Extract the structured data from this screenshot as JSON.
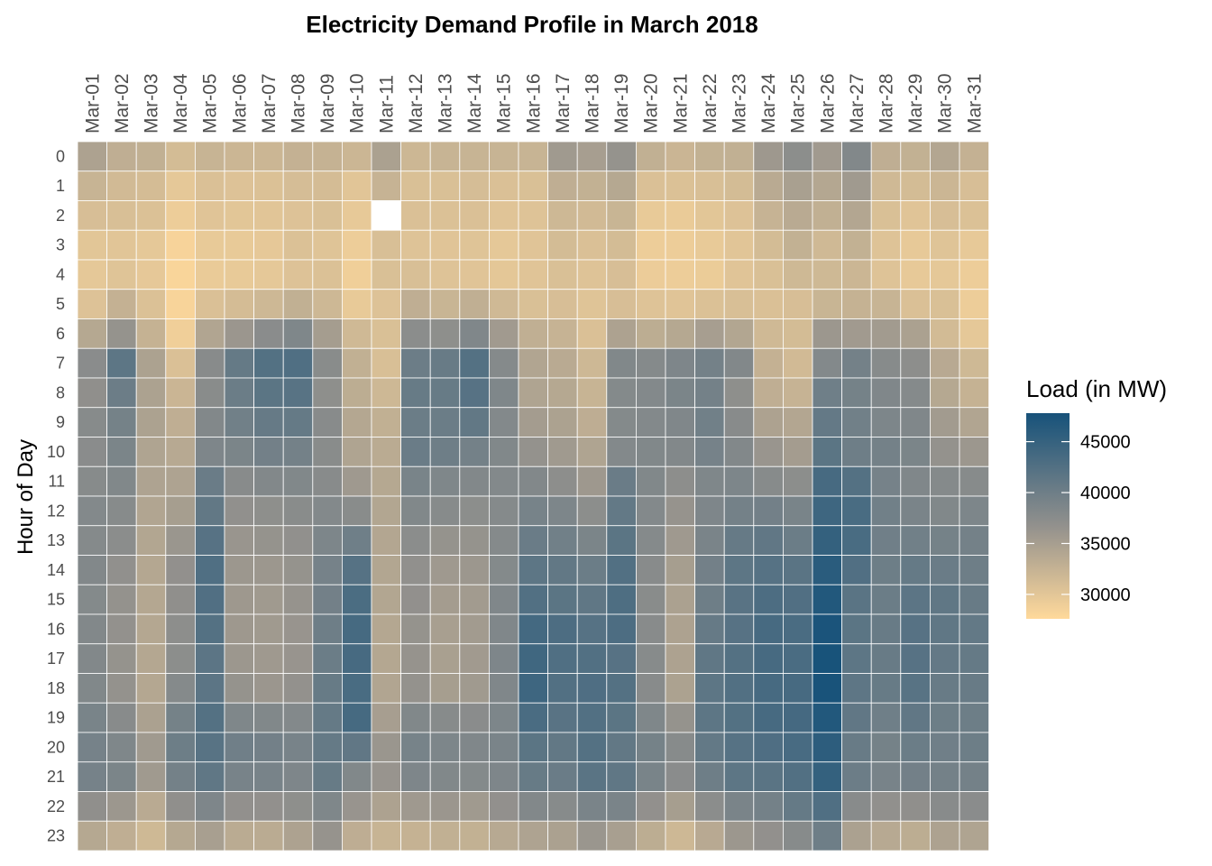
{
  "chart_data": {
    "type": "heatmap",
    "title": "Electricity Demand Profile in March 2018",
    "xlabel": "",
    "ylabel": "Hour of Day",
    "x_categories": [
      "Mar-01",
      "Mar-02",
      "Mar-03",
      "Mar-04",
      "Mar-05",
      "Mar-06",
      "Mar-07",
      "Mar-08",
      "Mar-09",
      "Mar-10",
      "Mar-11",
      "Mar-12",
      "Mar-13",
      "Mar-14",
      "Mar-15",
      "Mar-16",
      "Mar-17",
      "Mar-18",
      "Mar-19",
      "Mar-20",
      "Mar-21",
      "Mar-22",
      "Mar-23",
      "Mar-24",
      "Mar-25",
      "Mar-26",
      "Mar-27",
      "Mar-28",
      "Mar-29",
      "Mar-30",
      "Mar-31"
    ],
    "y_categories": [
      "0",
      "1",
      "2",
      "3",
      "4",
      "5",
      "6",
      "7",
      "8",
      "9",
      "10",
      "11",
      "12",
      "13",
      "14",
      "15",
      "16",
      "17",
      "18",
      "19",
      "20",
      "21",
      "22",
      "23"
    ],
    "legend": {
      "title": "Load (in MW)",
      "position": "right",
      "ticks": [
        30000,
        35000,
        40000,
        45000
      ],
      "tick_labels": [
        "30000",
        "35000",
        "40000",
        "45000"
      ],
      "range": [
        27600,
        47800
      ],
      "color_low": "#ffd99b",
      "color_mid": "#93918d",
      "color_high": "#17527a"
    },
    "missing": [
      {
        "day": "Mar-11",
        "hour": 2
      }
    ],
    "values_by_day": [
      [
        34500,
        32300,
        31000,
        30000,
        29800,
        30500,
        33800,
        37500,
        37000,
        37800,
        37500,
        37800,
        38100,
        37900,
        38200,
        38000,
        38200,
        38200,
        38300,
        39000,
        39300,
        39300,
        37000,
        33800
      ],
      [
        33000,
        31500,
        30900,
        30100,
        30300,
        32600,
        36500,
        41500,
        40200,
        39400,
        38800,
        38300,
        37800,
        37400,
        36900,
        36600,
        36700,
        36500,
        36600,
        37700,
        38500,
        38800,
        35900,
        33000
      ],
      [
        32800,
        31200,
        30600,
        29800,
        29700,
        30600,
        32500,
        34600,
        34600,
        34600,
        34300,
        34400,
        34200,
        34100,
        33900,
        33900,
        33900,
        33900,
        33900,
        34700,
        35600,
        35600,
        33500,
        31700
      ],
      [
        31300,
        29800,
        29100,
        28300,
        28100,
        28200,
        28900,
        30700,
        32100,
        33000,
        33700,
        34400,
        35100,
        36100,
        36800,
        37000,
        37200,
        37300,
        37900,
        39400,
        40100,
        39500,
        37000,
        33800
      ],
      [
        32300,
        30700,
        30200,
        29500,
        29400,
        30700,
        34200,
        37700,
        37600,
        38200,
        38600,
        40400,
        41100,
        42100,
        42700,
        42600,
        42300,
        41600,
        41600,
        42300,
        42000,
        41300,
        38600,
        34900
      ],
      [
        32000,
        30500,
        30000,
        29500,
        29500,
        31200,
        36000,
        40800,
        40300,
        39700,
        38800,
        37700,
        36900,
        36200,
        35900,
        35800,
        35800,
        35900,
        36500,
        38500,
        39800,
        39100,
        36800,
        33400
      ],
      [
        32000,
        30600,
        30100,
        29700,
        29800,
        31800,
        37500,
        42400,
        41700,
        40700,
        39600,
        38200,
        37100,
        36500,
        35900,
        35600,
        35600,
        35700,
        36000,
        38300,
        39600,
        39100,
        36800,
        33400
      ],
      [
        32600,
        31100,
        30500,
        30600,
        30500,
        32800,
        38500,
        42700,
        42000,
        40800,
        39500,
        38300,
        37600,
        36900,
        36500,
        36400,
        36300,
        36300,
        36700,
        38100,
        39100,
        38600,
        37100,
        34500
      ],
      [
        32500,
        31200,
        30800,
        30300,
        30600,
        31800,
        35200,
        37600,
        37100,
        37700,
        37600,
        37700,
        38100,
        38700,
        39300,
        39600,
        40000,
        40300,
        40600,
        40800,
        40800,
        40600,
        38500,
        36400
      ],
      [
        32000,
        30100,
        29600,
        29100,
        28900,
        29500,
        31600,
        32800,
        33200,
        33900,
        34300,
        35700,
        37600,
        39900,
        42200,
        43100,
        43600,
        43500,
        43300,
        43600,
        41200,
        38300,
        36300,
        33100
      ],
      [
        34700,
        32400,
        null,
        30900,
        30800,
        30500,
        30800,
        30900,
        31800,
        32800,
        33400,
        33800,
        34100,
        34000,
        34100,
        34100,
        33900,
        33900,
        34200,
        35000,
        36100,
        36300,
        34500,
        32300
      ],
      [
        31900,
        30800,
        30700,
        30400,
        30900,
        33000,
        37400,
        40200,
        40600,
        40300,
        40400,
        39000,
        38300,
        37400,
        36900,
        36800,
        36500,
        36400,
        36600,
        38300,
        39200,
        38600,
        35700,
        32500
      ],
      [
        32300,
        30800,
        30600,
        30200,
        30400,
        32200,
        37100,
        40500,
        40600,
        40300,
        40000,
        38500,
        37800,
        36500,
        35700,
        35300,
        34900,
        34800,
        35100,
        37800,
        38700,
        38300,
        36000,
        32800
      ],
      [
        32300,
        31100,
        30700,
        30300,
        30200,
        32900,
        38400,
        42300,
        42100,
        41100,
        39500,
        38200,
        37300,
        36500,
        35900,
        35400,
        35400,
        35500,
        35600,
        37500,
        38400,
        38000,
        35600,
        32700
      ],
      [
        32300,
        30700,
        30200,
        29800,
        29900,
        31600,
        35500,
        37900,
        38500,
        38100,
        38300,
        38100,
        37900,
        37900,
        38000,
        38400,
        38400,
        38600,
        38400,
        38700,
        38900,
        38600,
        36800,
        33700
      ],
      [
        32300,
        30800,
        30400,
        30200,
        30200,
        30800,
        32900,
        34200,
        34300,
        35300,
        36600,
        38200,
        39200,
        40400,
        41500,
        42500,
        43800,
        44100,
        44300,
        43200,
        41700,
        40600,
        38200,
        34400
      ],
      [
        35600,
        33000,
        31800,
        31300,
        30800,
        31000,
        32400,
        33500,
        33800,
        34600,
        35600,
        37200,
        38700,
        39700,
        41100,
        41700,
        43000,
        42700,
        42500,
        41900,
        41100,
        40400,
        37800,
        34700
      ],
      [
        35000,
        32700,
        31500,
        30700,
        30400,
        30300,
        30700,
        31800,
        32300,
        33100,
        34300,
        35800,
        37300,
        38800,
        40300,
        41300,
        42200,
        42500,
        42800,
        42500,
        42300,
        41800,
        38900,
        36100
      ],
      [
        36500,
        33800,
        32200,
        31300,
        31000,
        31000,
        34500,
        38300,
        38000,
        38000,
        38100,
        40400,
        41000,
        41700,
        42500,
        42900,
        43000,
        42100,
        42300,
        41700,
        41100,
        41300,
        38900,
        34900
      ],
      [
        32800,
        30700,
        29500,
        29100,
        29200,
        30400,
        33200,
        37900,
        38100,
        38100,
        38300,
        38300,
        38100,
        37900,
        37700,
        37600,
        37700,
        37800,
        37700,
        38500,
        39400,
        39000,
        36800,
        33200
      ],
      [
        32100,
        30600,
        29400,
        29100,
        29100,
        30200,
        33800,
        38600,
        38800,
        38400,
        38200,
        37200,
        36400,
        35700,
        35100,
        34700,
        34500,
        34500,
        34600,
        36500,
        37800,
        37500,
        35100,
        31800
      ],
      [
        32700,
        30900,
        30000,
        29500,
        29300,
        30600,
        35000,
        39500,
        39500,
        39700,
        39300,
        38500,
        38600,
        38900,
        39600,
        40000,
        40700,
        41300,
        41500,
        41500,
        41000,
        40000,
        37400,
        33600
      ],
      [
        32800,
        31300,
        30500,
        30100,
        30200,
        30900,
        34100,
        38200,
        37100,
        37700,
        38200,
        38700,
        39500,
        40700,
        41500,
        41900,
        42100,
        42300,
        42500,
        42400,
        42200,
        41500,
        38900,
        35900
      ],
      [
        35800,
        33500,
        32400,
        31300,
        30800,
        30700,
        31600,
        32600,
        33000,
        34500,
        36200,
        37800,
        39600,
        41200,
        42200,
        43000,
        43500,
        43500,
        43500,
        43500,
        42800,
        41800,
        39500,
        36800
      ],
      [
        37300,
        34800,
        33500,
        32700,
        31700,
        31000,
        31300,
        31500,
        32400,
        34000,
        35300,
        37300,
        39000,
        40300,
        41800,
        42600,
        43200,
        43200,
        43500,
        43700,
        43400,
        42500,
        40800,
        37800
      ],
      [
        35500,
        33900,
        32800,
        31600,
        31700,
        32200,
        35900,
        38100,
        39900,
        40900,
        41700,
        43500,
        44300,
        45200,
        46100,
        46800,
        47400,
        47700,
        47600,
        46800,
        45800,
        45200,
        42700,
        40000
      ],
      [
        38200,
        35600,
        34000,
        32700,
        32000,
        32500,
        35500,
        39500,
        39400,
        39700,
        40000,
        42300,
        43300,
        43300,
        42600,
        41800,
        41700,
        41500,
        41400,
        41200,
        40500,
        40200,
        37700,
        34700
      ],
      [
        33000,
        31600,
        30800,
        30400,
        30400,
        32300,
        35400,
        37800,
        38400,
        38700,
        39500,
        39300,
        39700,
        39800,
        40100,
        40300,
        40500,
        40500,
        40600,
        39900,
        39400,
        39100,
        36900,
        33700
      ],
      [
        32700,
        31300,
        30200,
        29600,
        29600,
        30700,
        34700,
        37200,
        37900,
        38400,
        38800,
        38400,
        38900,
        39700,
        40800,
        41600,
        42100,
        42100,
        42000,
        41200,
        40300,
        39600,
        37000,
        33200
      ],
      [
        34000,
        32000,
        31000,
        30300,
        29800,
        30800,
        31400,
        33600,
        33800,
        35400,
        36600,
        37900,
        38300,
        39400,
        40400,
        41300,
        41300,
        40900,
        40500,
        40100,
        39800,
        39500,
        37700,
        34500
      ],
      [
        32600,
        31000,
        30600,
        29600,
        29100,
        29100,
        29800,
        31700,
        32500,
        34200,
        35900,
        37800,
        38700,
        39500,
        40000,
        40500,
        41000,
        40800,
        40500,
        40100,
        40100,
        39500,
        37500,
        34300
      ]
    ]
  }
}
